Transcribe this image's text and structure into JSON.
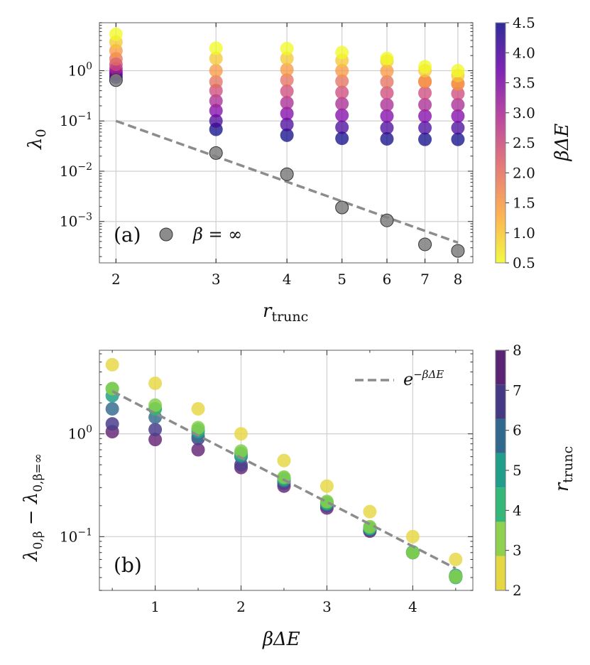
{
  "chart_data": [
    {
      "id": "a",
      "type": "scatter",
      "panel_label": "(a)",
      "xscale": "log",
      "yscale": "log",
      "xlim": [
        1.87,
        8.5
      ],
      "ylim": [
        0.00015,
        9
      ],
      "xlabel": "r",
      "xlabel_sub": "trunc",
      "ylabel": "λ",
      "ylabel_sub": "0",
      "xticks": [
        {
          "value": 2,
          "label": "2"
        },
        {
          "value": 3,
          "label": "3"
        },
        {
          "value": 4,
          "label": "4"
        },
        {
          "value": 5,
          "label": "5"
        },
        {
          "value": 6,
          "label": "6"
        },
        {
          "value": 7,
          "label": "7"
        },
        {
          "value": 8,
          "label": "8"
        }
      ],
      "yticks": [
        {
          "value": 0.001,
          "base": "10",
          "exp": "−3"
        },
        {
          "value": 0.01,
          "base": "10",
          "exp": "−2"
        },
        {
          "value": 0.1,
          "base": "10",
          "exp": "−1"
        },
        {
          "value": 1,
          "base": "10",
          "exp": "0"
        }
      ],
      "grid": true,
      "colorbar": {
        "label": "βΔE",
        "range": [
          0.5,
          4.5
        ],
        "colormap": "plasma",
        "ticks": [
          "0.5",
          "1.0",
          "1.5",
          "2.0",
          "2.5",
          "3.0",
          "3.5",
          "4.0",
          "4.5"
        ]
      },
      "beta_dE_levels": [
        0.5,
        1.0,
        1.5,
        2.0,
        2.5,
        3.0,
        3.5,
        4.0,
        4.5
      ],
      "series": [
        {
          "r_trunc": 2,
          "lambda0": [
            5.3,
            3.7,
            2.5,
            1.72,
            1.34,
            1.1,
            0.95,
            0.85,
            0.74
          ]
        },
        {
          "r_trunc": 3,
          "lambda0": [
            2.8,
            1.75,
            1.0,
            0.6,
            0.4,
            0.25,
            0.16,
            0.1,
            0.068
          ]
        },
        {
          "r_trunc": 4,
          "lambda0": [
            2.75,
            1.75,
            1.05,
            0.65,
            0.39,
            0.23,
            0.14,
            0.085,
            0.052
          ]
        },
        {
          "r_trunc": 5,
          "lambda0": [
            2.3,
            1.6,
            1.0,
            0.62,
            0.37,
            0.22,
            0.13,
            0.075,
            0.045
          ]
        },
        {
          "r_trunc": 6,
          "lambda0": [
            1.75,
            1.55,
            0.98,
            0.6,
            0.36,
            0.21,
            0.125,
            0.073,
            0.044
          ]
        },
        {
          "r_trunc": 7,
          "lambda0": [
            1.2,
            1.0,
            0.62,
            0.6,
            0.36,
            0.21,
            0.125,
            0.073,
            0.043
          ]
        },
        {
          "r_trunc": 8,
          "lambda0": [
            1.0,
            0.8,
            0.55,
            0.55,
            0.35,
            0.21,
            0.125,
            0.073,
            0.043
          ]
        }
      ],
      "beta_inf": {
        "legend": "β = ∞",
        "color": "#7f7f7f",
        "x": [
          2,
          3,
          4,
          5,
          6,
          7,
          8
        ],
        "y": [
          0.65,
          0.023,
          0.0087,
          0.0019,
          0.00105,
          0.00035,
          0.00026
        ]
      },
      "fit_line": {
        "x": [
          2,
          8
        ],
        "y": [
          0.1,
          0.00038
        ],
        "color": "#8c8c8c"
      }
    },
    {
      "id": "b",
      "type": "scatter",
      "panel_label": "(b)",
      "xscale": "linear",
      "yscale": "log",
      "xlim": [
        0.35,
        4.7
      ],
      "ylim": [
        0.03,
        6.5
      ],
      "xlabel": "βΔE",
      "ylabel": "λ",
      "ylabel_full": "λ0,β − λ0,β=∞",
      "xticks": [
        {
          "value": 1,
          "label": "1"
        },
        {
          "value": 2,
          "label": "2"
        },
        {
          "value": 3,
          "label": "3"
        },
        {
          "value": 4,
          "label": "4"
        }
      ],
      "yticks": [
        {
          "value": 0.1,
          "base": "10",
          "exp": "−1"
        },
        {
          "value": 1,
          "base": "10",
          "exp": "0"
        }
      ],
      "grid": true,
      "legend": {
        "label": "e",
        "exp": "−βΔE",
        "position": "top-right"
      },
      "colorbar": {
        "label": "r",
        "label_sub": "trunc",
        "range": [
          2,
          8
        ],
        "colormap": "viridis-discrete",
        "ticks": [
          "2",
          "3",
          "4",
          "5",
          "6",
          "7",
          "8"
        ],
        "colors": [
          "#e5d644",
          "#8fd14f",
          "#35b779",
          "#1f9e89",
          "#31688e",
          "#443a83",
          "#5b2374"
        ]
      },
      "x": [
        0.5,
        1.0,
        1.5,
        2.0,
        2.5,
        3.0,
        3.5,
        4.0,
        4.5
      ],
      "series": [
        {
          "r_trunc": 2,
          "color": "#e8d84a",
          "values": [
            4.7,
            3.1,
            1.75,
            1.0,
            0.55,
            0.31,
            0.175,
            0.1,
            0.06
          ]
        },
        {
          "r_trunc": 3,
          "color": "#86d04f",
          "values": [
            2.75,
            1.9,
            1.15,
            0.68,
            0.38,
            0.22,
            0.125,
            0.07,
            0.041
          ]
        },
        {
          "r_trunc": 4,
          "color": "#3db56f",
          "values": [
            2.75,
            1.75,
            1.1,
            0.65,
            0.37,
            0.215,
            0.122,
            0.07,
            0.04
          ]
        },
        {
          "r_trunc": 5,
          "color": "#23a08a",
          "values": [
            2.35,
            1.75,
            1.05,
            0.62,
            0.36,
            0.21,
            0.12,
            0.071,
            0.042
          ]
        },
        {
          "r_trunc": 6,
          "color": "#3a6e90",
          "values": [
            1.75,
            1.45,
            0.95,
            0.6,
            0.35,
            0.205,
            0.118,
            0.07,
            0.041
          ]
        },
        {
          "r_trunc": 7,
          "color": "#4b3f8c",
          "values": [
            1.25,
            1.1,
            0.9,
            0.5,
            0.33,
            0.2,
            0.116,
            0.07,
            0.041
          ]
        },
        {
          "r_trunc": 8,
          "color": "#6a2d7a",
          "values": [
            1.05,
            0.88,
            0.7,
            0.47,
            0.31,
            0.19,
            0.113,
            0.07,
            0.041
          ]
        }
      ],
      "fit_line": {
        "x": [
          0.5,
          4.5
        ],
        "y": [
          2.6,
          0.049
        ],
        "color": "#8c8c8c"
      }
    }
  ]
}
